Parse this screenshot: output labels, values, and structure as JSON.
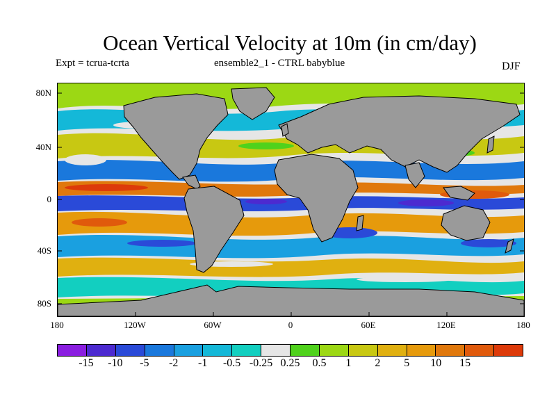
{
  "title": "Ocean Vertical Velocity at 10m (in cm/day)",
  "subtitle_left": "Expt = tcrua-tcrta",
  "subtitle_center": "ensemble2_1 - CTRL babyblue",
  "subtitle_right": "DJF",
  "lat_labels": [
    "80N",
    "40N",
    "0",
    "40S",
    "80S"
  ],
  "lon_labels": [
    "180",
    "120W",
    "60W",
    "0",
    "60E",
    "120E",
    "180"
  ],
  "colorbar": {
    "colors": [
      "#8a1ee0",
      "#4c2ad0",
      "#2a4ad8",
      "#1a78dc",
      "#1aa0e0",
      "#14b8d8",
      "#12cfc0",
      "#e6e6e6",
      "#4fd21c",
      "#9cd814",
      "#c8c812",
      "#e0b010",
      "#e69a0c",
      "#e0780c",
      "#e05a0c",
      "#dd3a0a"
    ],
    "labels": [
      "-15",
      "-10",
      "-5",
      "-2",
      "-1",
      "-0.5",
      "-0.25",
      "0.25",
      "0.5",
      "1",
      "2",
      "5",
      "10",
      "15"
    ]
  },
  "land_color": "#9a9a9a",
  "ocean_base_color": "#e6e6e6"
}
